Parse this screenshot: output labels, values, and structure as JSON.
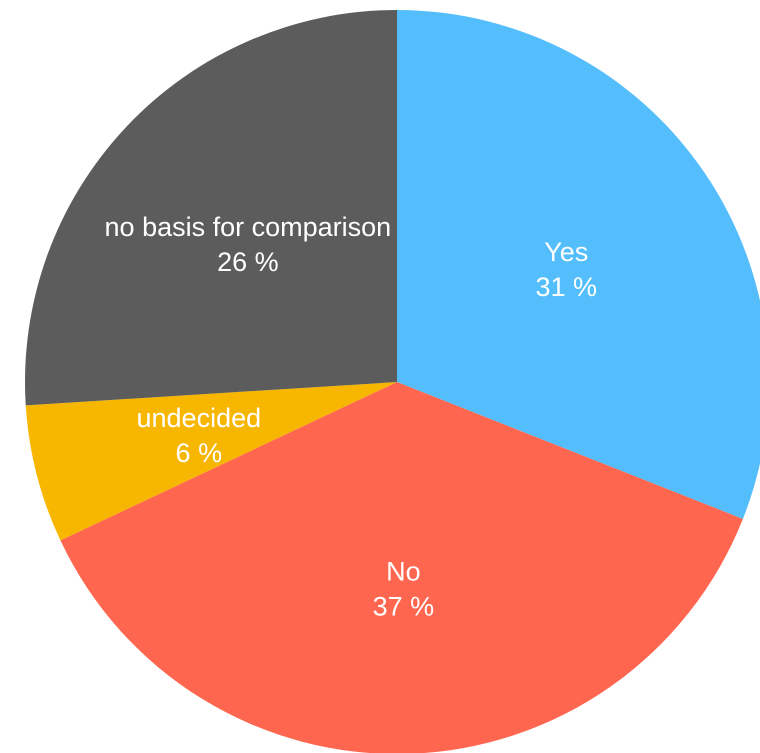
{
  "chart_data": {
    "type": "pie",
    "title": "",
    "start_angle_deg": 0,
    "direction": "clockwise",
    "slices": [
      {
        "label": "Yes",
        "value": 31,
        "value_label": "31 %",
        "color": "#54BEFC"
      },
      {
        "label": "No",
        "value": 37,
        "value_label": "37 %",
        "color": "#FF6650"
      },
      {
        "label": "undecided",
        "value": 6,
        "value_label": "6 %",
        "color": "#F7B600"
      },
      {
        "label": "no basis for comparison",
        "value": 26,
        "value_label": "26 %",
        "color": "#5C5C5C"
      }
    ]
  }
}
